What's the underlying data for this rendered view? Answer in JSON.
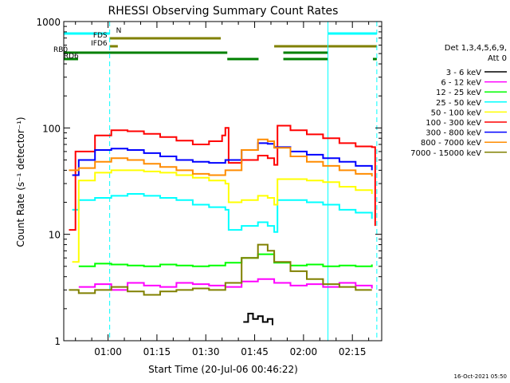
{
  "chart_data": {
    "type": "line",
    "title": "RHESSI Observing Summary Count Rates",
    "xlabel": "Start Time (20-Jul-06 00:46:22)",
    "ylabel": "Count Rate (s⁻¹ detector⁻¹)",
    "yscale": "log",
    "ylim": [
      1,
      1000
    ],
    "xlim_minutes": [
      46.4,
      144
    ],
    "x_ticks": [
      {
        "label": "01:00",
        "min": 60
      },
      {
        "label": "01:15",
        "min": 75
      },
      {
        "label": "01:30",
        "min": 90
      },
      {
        "label": "01:45",
        "min": 105
      },
      {
        "label": "02:00",
        "min": 120
      },
      {
        "label": "02:15",
        "min": 135
      }
    ],
    "y_ticks": [
      {
        "label": "1",
        "value": 1
      },
      {
        "label": "10",
        "value": 10
      },
      {
        "label": "100",
        "value": 100
      },
      {
        "label": "1000",
        "value": 1000
      }
    ],
    "legend_title": "Det 1,3,4,5,6,9,",
    "legend_subtitle": "Att 0",
    "legend_position": "right",
    "flags": [
      {
        "label": "N",
        "color": "#00ffff",
        "segments": [
          [
            46.4,
            60.5
          ],
          [
            127.5,
            142.5
          ]
        ]
      },
      {
        "label": "FDS",
        "color": "#808000",
        "segments": [
          [
            60.5,
            94.6
          ]
        ]
      },
      {
        "label": "FDS",
        "color": "#808000",
        "segments": [
          [
            46.4,
            60.5
          ]
        ]
      },
      {
        "label": "IFD6",
        "color": "#808000",
        "segments": [
          [
            60.5,
            63
          ],
          [
            111,
            142.5
          ]
        ]
      },
      {
        "label": "RB0",
        "color": "#008000",
        "segments": [
          [
            46.4,
            96.6
          ],
          [
            113.8,
            127.5
          ]
        ]
      },
      {
        "label": "RD6",
        "color": "#008000",
        "segments": [
          [
            46.4,
            50.8
          ],
          [
            96.6,
            106.2
          ],
          [
            113.8,
            127.5
          ],
          [
            141.3,
            142.5
          ]
        ]
      }
    ],
    "solid_vlines_min": [
      46.4,
      127.5
    ],
    "dashed_vlines_min": [
      60.5,
      142.5
    ],
    "series": [
      {
        "name": "3 - 6 keV",
        "color": "#000000",
        "points": [
          [
            101.5,
            1.5
          ],
          [
            103,
            1.8
          ],
          [
            104.5,
            1.6
          ],
          [
            106,
            1.7
          ],
          [
            107.5,
            1.5
          ],
          [
            109,
            1.6
          ],
          [
            110.5,
            1.4
          ]
        ]
      },
      {
        "name": "6 - 12 keV",
        "color": "#ff00ff",
        "points": [
          [
            51,
            3.2
          ],
          [
            56,
            3.4
          ],
          [
            61,
            3.0
          ],
          [
            66,
            3.5
          ],
          [
            71,
            3.3
          ],
          [
            76,
            3.2
          ],
          [
            81,
            3.5
          ],
          [
            86,
            3.4
          ],
          [
            91,
            3.3
          ],
          [
            96,
            3.2
          ],
          [
            101,
            3.6
          ],
          [
            106,
            3.8
          ],
          [
            111,
            3.5
          ],
          [
            116,
            3.3
          ],
          [
            121,
            3.4
          ],
          [
            126,
            3.2
          ],
          [
            131,
            3.5
          ],
          [
            136,
            3.3
          ],
          [
            141,
            3.1
          ]
        ]
      },
      {
        "name": "12 - 25 keV",
        "color": "#00ff00",
        "points": [
          [
            51,
            5.0
          ],
          [
            56,
            5.3
          ],
          [
            61,
            5.2
          ],
          [
            66,
            5.1
          ],
          [
            71,
            5.0
          ],
          [
            76,
            5.2
          ],
          [
            81,
            5.1
          ],
          [
            86,
            5.0
          ],
          [
            91,
            5.1
          ],
          [
            96,
            5.4
          ],
          [
            101,
            6.0
          ],
          [
            106,
            6.5
          ],
          [
            111,
            5.4
          ],
          [
            116,
            5.1
          ],
          [
            121,
            5.2
          ],
          [
            126,
            5.0
          ],
          [
            131,
            5.1
          ],
          [
            136,
            5.0
          ],
          [
            141,
            5.2
          ]
        ]
      },
      {
        "name": "25 - 50 keV",
        "color": "#00ffff",
        "points": [
          [
            49,
            17
          ],
          [
            51,
            21
          ],
          [
            56,
            22
          ],
          [
            61,
            23
          ],
          [
            66,
            24
          ],
          [
            71,
            23
          ],
          [
            76,
            22
          ],
          [
            81,
            21
          ],
          [
            86,
            19
          ],
          [
            91,
            18
          ],
          [
            96,
            17
          ],
          [
            97,
            11
          ],
          [
            101,
            12
          ],
          [
            106,
            13
          ],
          [
            109,
            12
          ],
          [
            111,
            10.5
          ],
          [
            112,
            21
          ],
          [
            116,
            21
          ],
          [
            121,
            20
          ],
          [
            126,
            19
          ],
          [
            131,
            17
          ],
          [
            136,
            16
          ],
          [
            141,
            14
          ]
        ]
      },
      {
        "name": "50 - 100 keV",
        "color": "#ffff00",
        "points": [
          [
            49,
            5.5
          ],
          [
            51,
            32
          ],
          [
            56,
            38
          ],
          [
            61,
            40
          ],
          [
            66,
            40
          ],
          [
            71,
            39
          ],
          [
            76,
            38
          ],
          [
            81,
            36
          ],
          [
            86,
            34
          ],
          [
            91,
            32
          ],
          [
            96,
            30
          ],
          [
            97,
            20
          ],
          [
            101,
            21
          ],
          [
            106,
            23
          ],
          [
            109,
            22
          ],
          [
            111,
            19
          ],
          [
            112,
            33
          ],
          [
            116,
            33
          ],
          [
            121,
            32
          ],
          [
            126,
            31
          ],
          [
            131,
            28
          ],
          [
            136,
            26
          ],
          [
            141,
            24
          ]
        ]
      },
      {
        "name": "100 - 300 keV",
        "color": "#ff0000",
        "points": [
          [
            48,
            11
          ],
          [
            49,
            11
          ],
          [
            50,
            60
          ],
          [
            56,
            85
          ],
          [
            61,
            95
          ],
          [
            66,
            93
          ],
          [
            71,
            88
          ],
          [
            76,
            82
          ],
          [
            81,
            76
          ],
          [
            86,
            70
          ],
          [
            91,
            75
          ],
          [
            95,
            85
          ],
          [
            96,
            100
          ],
          [
            97,
            47
          ],
          [
            101,
            50
          ],
          [
            106,
            55
          ],
          [
            109,
            52
          ],
          [
            111,
            45
          ],
          [
            112,
            105
          ],
          [
            116,
            95
          ],
          [
            121,
            87
          ],
          [
            126,
            80
          ],
          [
            131,
            72
          ],
          [
            136,
            67
          ],
          [
            141,
            66
          ],
          [
            142,
            12
          ]
        ]
      },
      {
        "name": "300 - 800 keV",
        "color": "#0000ff",
        "points": [
          [
            49,
            36
          ],
          [
            51,
            50
          ],
          [
            56,
            62
          ],
          [
            61,
            64
          ],
          [
            66,
            62
          ],
          [
            71,
            58
          ],
          [
            76,
            54
          ],
          [
            81,
            50
          ],
          [
            86,
            48
          ],
          [
            91,
            47
          ],
          [
            96,
            50
          ],
          [
            101,
            62
          ],
          [
            106,
            72
          ],
          [
            109,
            71
          ],
          [
            111,
            66
          ],
          [
            116,
            60
          ],
          [
            121,
            56
          ],
          [
            126,
            52
          ],
          [
            131,
            48
          ],
          [
            136,
            44
          ],
          [
            141,
            40
          ]
        ]
      },
      {
        "name": "800 - 7000 keV",
        "color": "#ff8c00",
        "points": [
          [
            48,
            40
          ],
          [
            51,
            42
          ],
          [
            56,
            48
          ],
          [
            61,
            52
          ],
          [
            66,
            50
          ],
          [
            71,
            46
          ],
          [
            76,
            43
          ],
          [
            81,
            40
          ],
          [
            86,
            37
          ],
          [
            91,
            36
          ],
          [
            96,
            40
          ],
          [
            101,
            62
          ],
          [
            106,
            78
          ],
          [
            109,
            75
          ],
          [
            111,
            65
          ],
          [
            116,
            54
          ],
          [
            121,
            48
          ],
          [
            126,
            44
          ],
          [
            131,
            40
          ],
          [
            136,
            37
          ],
          [
            141,
            35
          ]
        ]
      },
      {
        "name": "7000 - 15000 keV",
        "color": "#808000",
        "points": [
          [
            48,
            3
          ],
          [
            51,
            2.8
          ],
          [
            56,
            3.0
          ],
          [
            61,
            3.2
          ],
          [
            66,
            2.9
          ],
          [
            71,
            2.7
          ],
          [
            76,
            2.9
          ],
          [
            81,
            3.0
          ],
          [
            86,
            3.1
          ],
          [
            91,
            3.0
          ],
          [
            96,
            3.5
          ],
          [
            101,
            6.0
          ],
          [
            106,
            8.0
          ],
          [
            109,
            7.0
          ],
          [
            111,
            5.5
          ],
          [
            116,
            4.5
          ],
          [
            121,
            3.8
          ],
          [
            126,
            3.4
          ],
          [
            131,
            3.2
          ],
          [
            136,
            3.0
          ],
          [
            141,
            3.0
          ]
        ]
      }
    ]
  },
  "timestamp": "16-Oct-2021 05:50"
}
